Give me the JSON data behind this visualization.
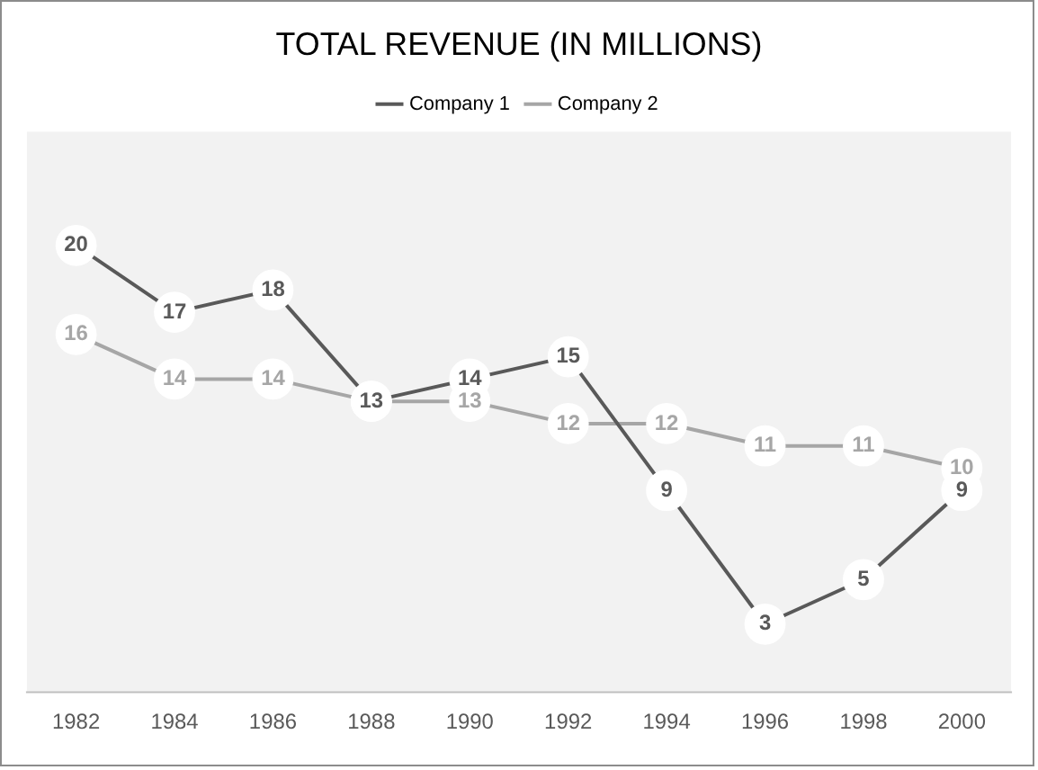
{
  "chart_data": {
    "type": "line",
    "title": "TOTAL REVENUE (IN MILLIONS)",
    "categories": [
      "1982",
      "1984",
      "1986",
      "1988",
      "1990",
      "1992",
      "1994",
      "1996",
      "1998",
      "2000"
    ],
    "series": [
      {
        "name": "Company 1",
        "color": "#595959",
        "values": [
          20,
          17,
          18,
          13,
          14,
          15,
          9,
          3,
          5,
          9
        ],
        "value_labels": [
          "20",
          "17",
          "18",
          "13",
          "14",
          "15",
          "9",
          "3",
          "5",
          "9"
        ]
      },
      {
        "name": "Company 2",
        "color": "#a6a6a6",
        "values": [
          16,
          14,
          14,
          13,
          13,
          12,
          12,
          11,
          11,
          10
        ],
        "value_labels": [
          "16",
          "14",
          "14",
          null,
          "13",
          "12",
          "12",
          "11",
          "11",
          "10"
        ]
      }
    ],
    "legend": "top",
    "grid": false,
    "marker": "circle",
    "line_style": "solid"
  }
}
